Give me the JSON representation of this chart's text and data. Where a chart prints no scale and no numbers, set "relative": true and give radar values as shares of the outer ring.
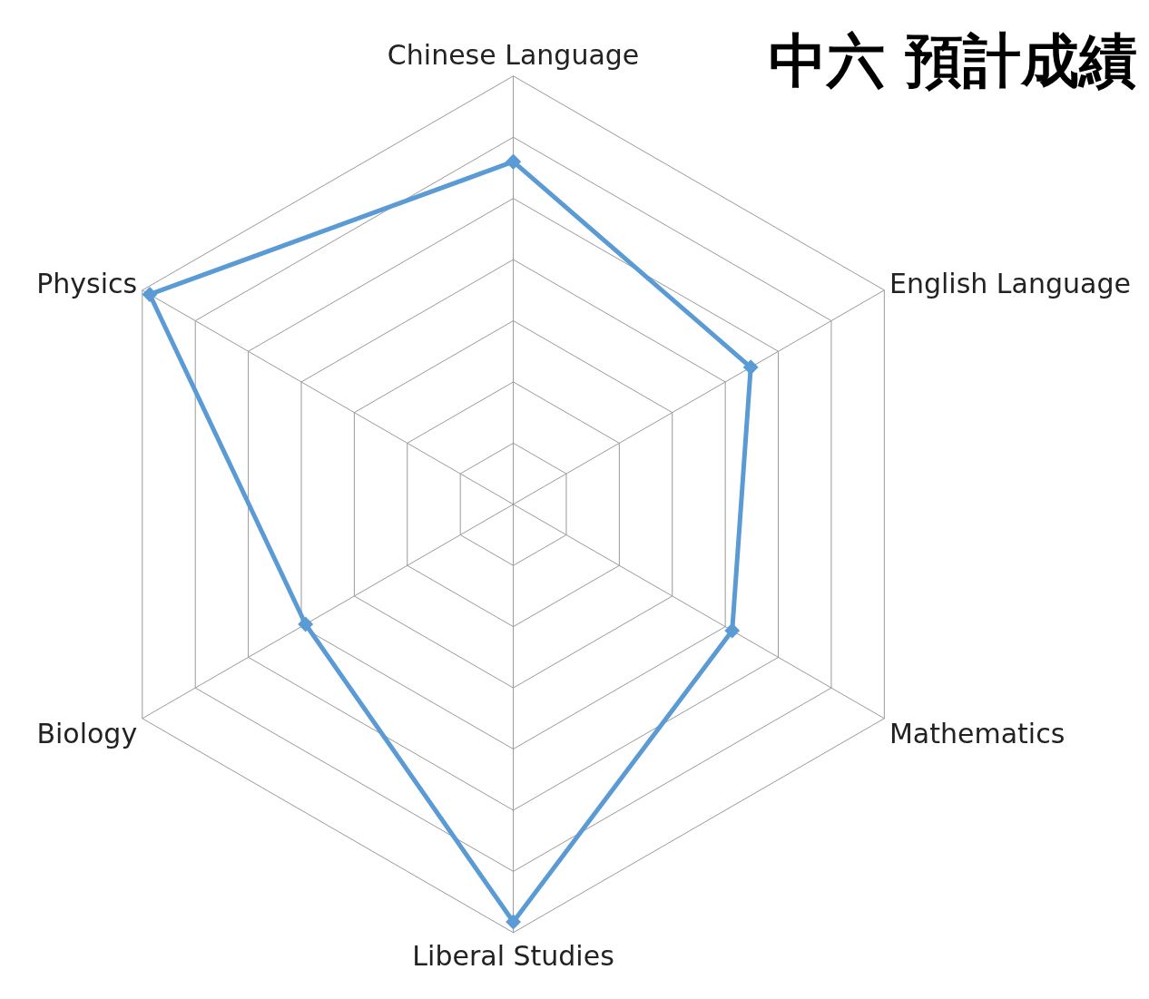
{
  "chart_data": {
    "type": "radar",
    "title": "中六 預計成績",
    "relative": true,
    "grid": true,
    "marker": "diamond",
    "line_style": "solid",
    "categories": [
      "Chinese Language",
      "English Language",
      "Mathematics",
      "Liberal Studies",
      "Biology",
      "Physics"
    ],
    "series": [
      {
        "color": "#5b9bd5",
        "values": [
          0.8,
          0.64,
          0.59,
          0.975,
          0.56,
          0.98
        ]
      }
    ]
  }
}
